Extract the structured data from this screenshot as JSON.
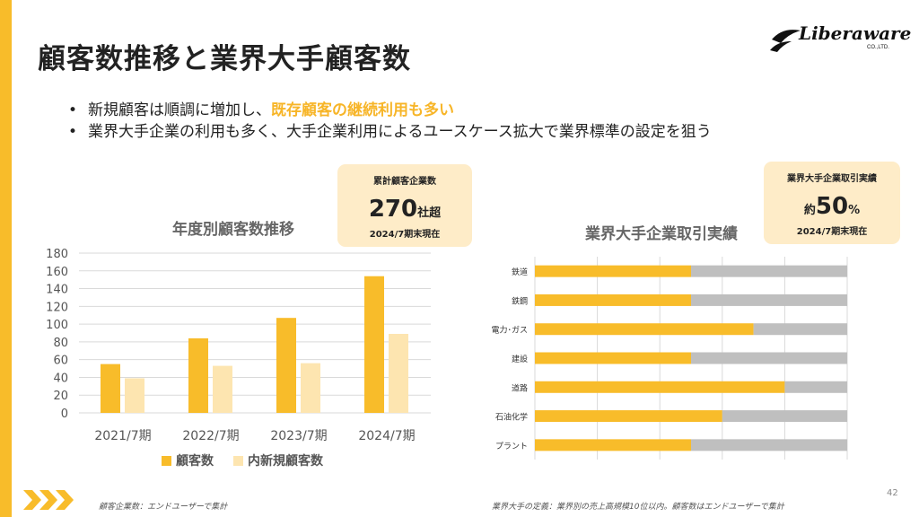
{
  "page": {
    "title": "顧客数推移と業界大手顧客数",
    "logo_text": "Liberaware",
    "logo_sub": "CO.,LTD.",
    "page_number": "42"
  },
  "bullets": [
    {
      "text": "新規顧客は順調に増加し、",
      "highlight": "既存顧客の継続利用も多い"
    },
    {
      "text": "業界大手企業の利用も多く、大手企業利用によるユースケース拡大で業界標準の設定を狙う",
      "highlight": ""
    }
  ],
  "callout_left": {
    "label": "累計顧客企業数",
    "value": "270",
    "unit": "社超",
    "note": "2024/7期末現在"
  },
  "callout_right": {
    "label": "業界大手企業取引実績",
    "prefix": "約",
    "value": "50",
    "unit": "%",
    "note": "2024/7期末現在"
  },
  "footnotes": {
    "left": "顧客企業数：エンドユーザーで集計",
    "right": "業界大手の定義：業界別の売上高規模10位以内。顧客数はエンドユーザーで集計"
  },
  "colors": {
    "accent": "#f8bc2a",
    "accent_light": "#fde5b0",
    "gray_bar": "#bfbfbf",
    "callout_bg": "#feecc8"
  },
  "chart_data": [
    {
      "type": "bar",
      "title": "年度別顧客数推移",
      "categories": [
        "2021/7期",
        "2022/7期",
        "2023/7期",
        "2024/7期"
      ],
      "series": [
        {
          "name": "顧客数",
          "values": [
            55,
            84,
            107,
            154
          ],
          "color": "#f8bc2a"
        },
        {
          "name": "内新規顧客数",
          "values": [
            39,
            53,
            56,
            89
          ],
          "color": "#fde5b0"
        }
      ],
      "ylim": [
        0,
        180
      ],
      "yticks": [
        0,
        20,
        40,
        60,
        80,
        100,
        120,
        140,
        160,
        180
      ],
      "grid": true,
      "legend": "bottom"
    },
    {
      "type": "bar",
      "orientation": "horizontal",
      "stacked": true,
      "title": "業界大手企業取引実績",
      "categories": [
        "鉄道",
        "鉄鋼",
        "電力･ガス",
        "建設",
        "道路",
        "石油化学",
        "プラント"
      ],
      "series": [
        {
          "values": [
            0.5,
            0.5,
            0.7,
            0.5,
            0.8,
            0.6,
            0.5
          ],
          "color": "#f8bc2a"
        },
        {
          "values": [
            0.5,
            0.5,
            0.3,
            0.5,
            0.2,
            0.4,
            0.5
          ],
          "color": "#bfbfbf"
        }
      ],
      "xlim": [
        0,
        1
      ],
      "grid": true
    }
  ]
}
